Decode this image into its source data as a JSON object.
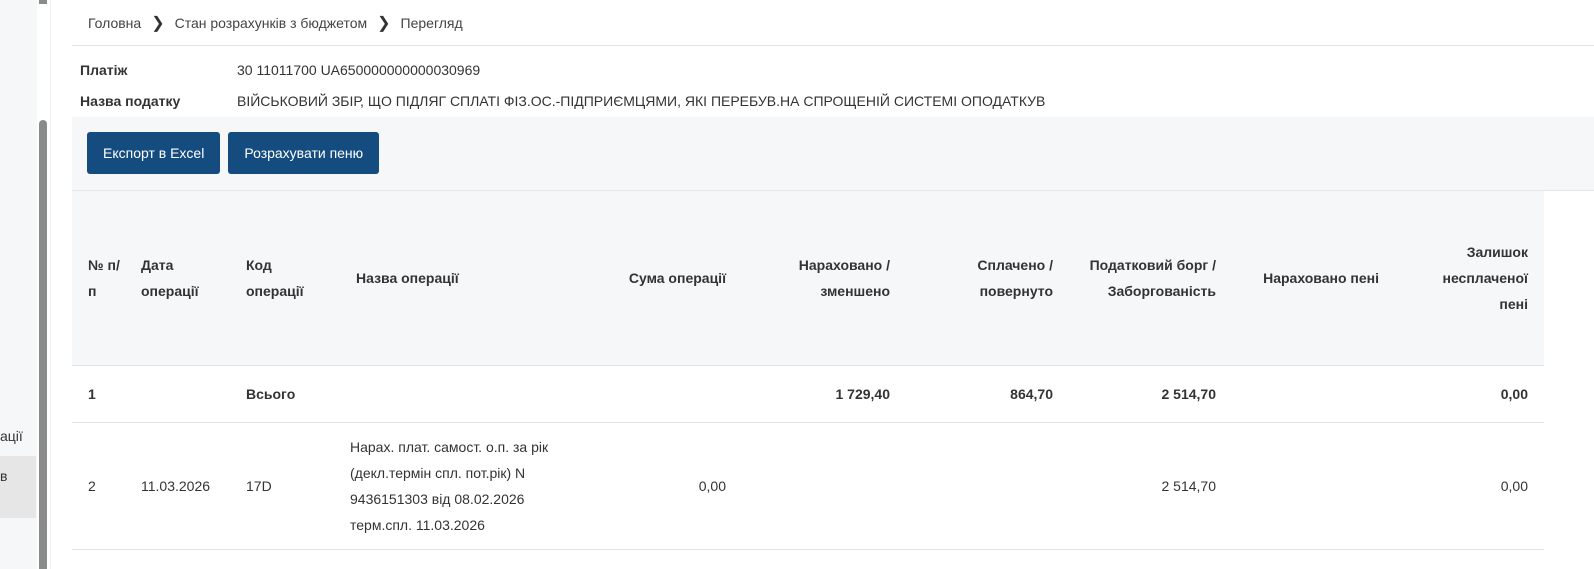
{
  "sidebar": {
    "item_partial": "ації",
    "selected_partial": "в"
  },
  "breadcrumb": [
    "Головна",
    "Стан розрахунків з бюджетом",
    "Перегляд"
  ],
  "info": {
    "payment_label": "Платіж",
    "payment_value": "30 11011700 UA650000000000030969",
    "tax_label": "Назва податку",
    "tax_value": "ВІЙСЬКОВИЙ ЗБІР, ЩО ПІДЛЯГ СПЛАТІ ФІЗ.ОС.-ПІДПРИЄМЦЯМИ, ЯКІ ПЕРЕБУВ.НА СПРОЩЕНІЙ СИСТЕМІ ОПОДАТКУВ"
  },
  "toolbar": {
    "export_label": "Експорт в Excel",
    "calc_label": "Розрахувати пеню"
  },
  "table": {
    "headers": [
      "№ п/п",
      "Дата операції",
      "Код операції",
      "Назва операції",
      "Сума операції",
      "Нараховано / зменшено",
      "Сплачено / повернуто",
      "Податковий борг / Заборгованість",
      "Нараховано пені",
      "Залишок несплаченої пені"
    ],
    "rows": [
      [
        "1",
        "",
        "Всього",
        "",
        "",
        "1 729,40",
        "864,70",
        "2 514,70",
        "",
        "0,00"
      ],
      [
        "2",
        "11.03.2026",
        "17D",
        "Нарах. плат. самост. о.п. за рік (декл.термін спл. пот.рік) N 9436151303 від 08.02.2026 терм.спл. 11.03.2026",
        "0,00",
        "",
        "",
        "2 514,70",
        "",
        "0,00"
      ]
    ]
  }
}
